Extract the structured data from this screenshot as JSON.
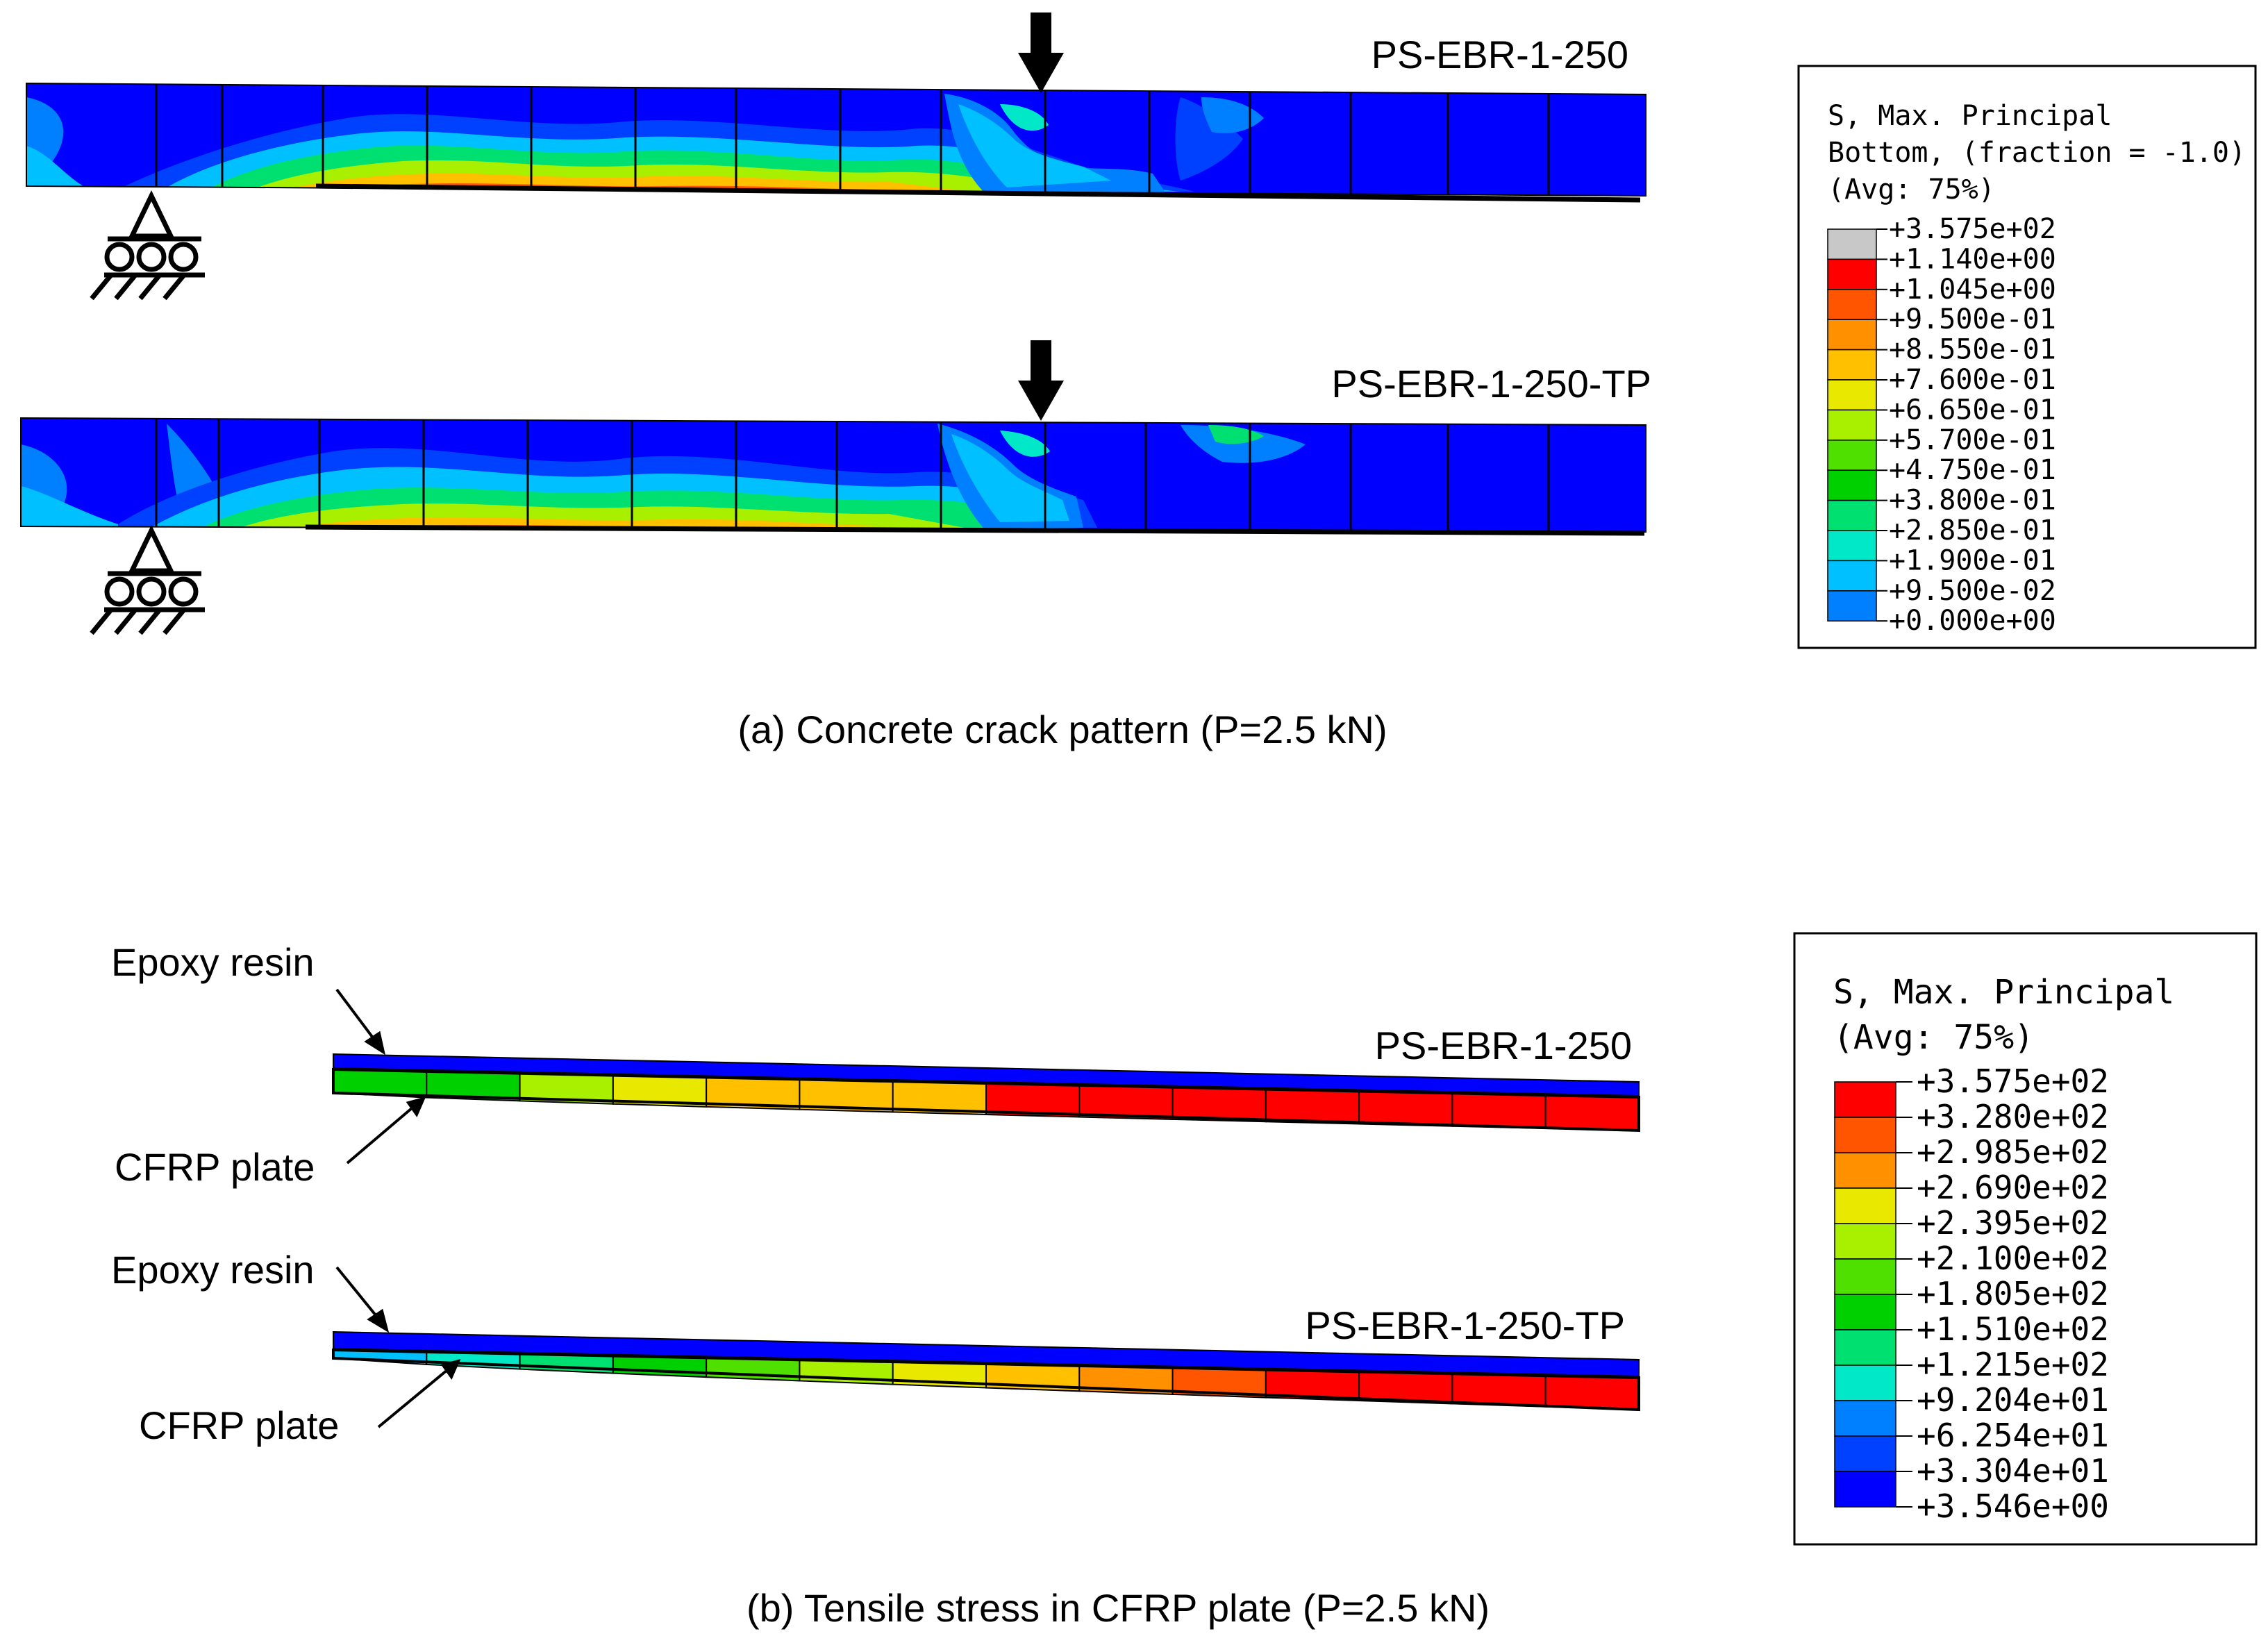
{
  "colors": {
    "background": "#ffffff",
    "frame": "#000000",
    "contour_palette": [
      "#0000ff",
      "#0040ff",
      "#0080ff",
      "#00c0ff",
      "#00e8c8",
      "#00e070",
      "#00d000",
      "#50e000",
      "#a8f000",
      "#e8e800",
      "#ffc000",
      "#ff9000",
      "#ff5500",
      "#ff0000"
    ],
    "overflow_gray": "#c8c8c8"
  },
  "panel_a": {
    "caption": "(a) Concrete crack pattern (P=2.5 kN)",
    "beams": [
      {
        "label": "PS-EBR-1-250",
        "load_icon": "down-arrow-icon",
        "support_icon": "roller-support-icon"
      },
      {
        "label": "PS-EBR-1-250-TP",
        "load_icon": "down-arrow-icon",
        "support_icon": "roller-support-icon"
      }
    ],
    "legend": {
      "title_lines": [
        "S, Max. Principal",
        "Bottom, (fraction = -1.0)",
        "(Avg: 75%)"
      ],
      "values": [
        "+3.575e+02",
        "+1.140e+00",
        "+1.045e+00",
        "+9.500e-01",
        "+8.550e-01",
        "+7.600e-01",
        "+6.650e-01",
        "+5.700e-01",
        "+4.750e-01",
        "+3.800e-01",
        "+2.850e-01",
        "+1.900e-01",
        "+9.500e-02",
        "+0.000e+00"
      ]
    }
  },
  "panel_b": {
    "caption": "(b) Tensile stress in CFRP plate (P=2.5 kN)",
    "plates": [
      {
        "label": "PS-EBR-1-250",
        "epoxy_label": "Epoxy resin",
        "cfrp_label": "CFRP plate",
        "element_levels": [
          6,
          6,
          8,
          9,
          10,
          10,
          10,
          13,
          13,
          13,
          13,
          13,
          13,
          13
        ]
      },
      {
        "label": "PS-EBR-1-250-TP",
        "epoxy_label": "Epoxy resin",
        "cfrp_label": "CFRP plate",
        "element_levels": [
          3,
          4,
          5,
          6,
          7,
          8,
          9,
          10,
          11,
          12,
          13,
          13,
          13,
          13
        ]
      }
    ],
    "legend": {
      "title_lines": [
        "S, Max. Principal",
        "(Avg: 75%)"
      ],
      "values": [
        "+3.575e+02",
        "+3.280e+02",
        "+2.985e+02",
        "+2.690e+02",
        "+2.395e+02",
        "+2.100e+02",
        "+1.805e+02",
        "+1.510e+02",
        "+1.215e+02",
        "+9.204e+01",
        "+6.254e+01",
        "+3.304e+01",
        "+3.546e+00"
      ]
    }
  }
}
